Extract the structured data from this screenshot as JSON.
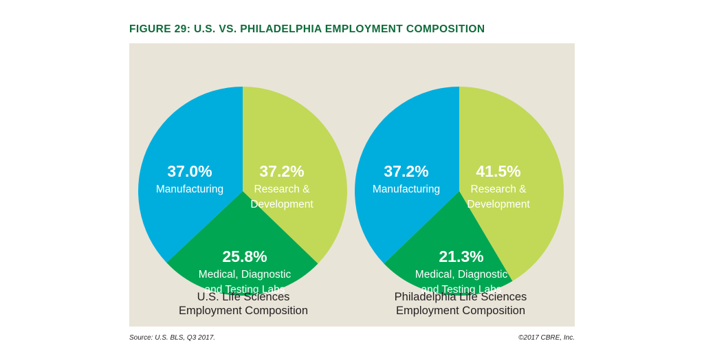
{
  "title": "FIGURE 29: U.S. VS. PHILADELPHIA EMPLOYMENT COMPOSITION",
  "colors": {
    "title": "#0f6a3a",
    "panel": "#e9e4d8",
    "manufacturing": "#00aedd",
    "research": "#c1d957",
    "medical": "#00a651",
    "label": "#ffffff"
  },
  "chart_data": [
    {
      "type": "pie",
      "caption": "U.S. Life Sciences\nEmployment Composition",
      "slices": [
        {
          "key": "research",
          "label": "Research &\nDevelopment",
          "value": 37.2,
          "display": "37.2%"
        },
        {
          "key": "medical",
          "label": "Medical, Diagnostic\nand Testing Labs",
          "value": 25.8,
          "display": "25.8%"
        },
        {
          "key": "manufacturing",
          "label": "Manufacturing",
          "value": 37.0,
          "display": "37.0%"
        }
      ]
    },
    {
      "type": "pie",
      "caption": "Philadelphia Life Sciences\nEmployment Composition",
      "slices": [
        {
          "key": "research",
          "label": "Research &\nDevelopment",
          "value": 41.5,
          "display": "41.5%"
        },
        {
          "key": "medical",
          "label": "Medical, Diagnostic\nand Testing Labs",
          "value": 21.3,
          "display": "21.3%"
        },
        {
          "key": "manufacturing",
          "label": "Manufacturing",
          "value": 37.2,
          "display": "37.2%"
        }
      ]
    }
  ],
  "source": "Source: U.S. BLS, Q3 2017.",
  "copyright": "©2017 CBRE, Inc."
}
